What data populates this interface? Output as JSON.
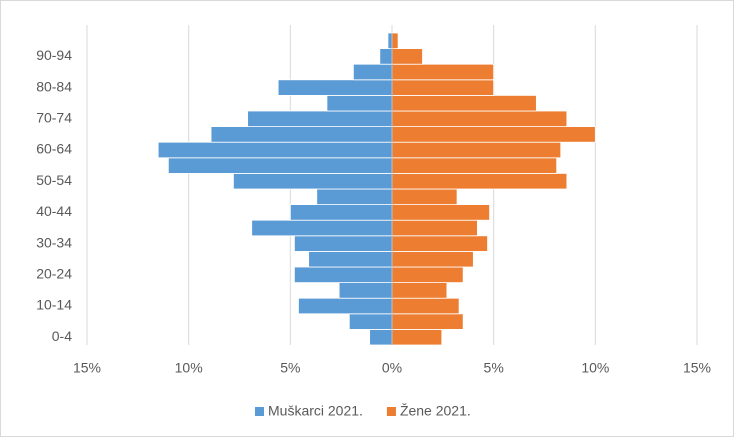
{
  "chart_data": {
    "type": "bar",
    "orientation": "horizontal",
    "stacked": "diverging",
    "categories": [
      "0-4",
      null,
      "10-14",
      null,
      "20-24",
      null,
      "30-34",
      null,
      "40-44",
      null,
      "50-54",
      null,
      "60-64",
      null,
      "70-74",
      null,
      "80-84",
      null,
      "90-94",
      null
    ],
    "series": [
      {
        "name": "Muškarci 2021.",
        "color": "#5b9bd5",
        "values": [
          -1.1,
          -2.1,
          -4.6,
          -2.6,
          -4.8,
          -4.1,
          -4.8,
          -6.9,
          -5.0,
          -3.7,
          -7.8,
          -11.0,
          -11.5,
          -8.9,
          -7.1,
          -3.2,
          -5.6,
          -1.9,
          -0.6,
          -0.2
        ]
      },
      {
        "name": "Žene 2021.",
        "color": "#ed7d31",
        "values": [
          2.45,
          3.5,
          3.3,
          2.7,
          3.5,
          4.0,
          4.7,
          4.2,
          4.8,
          3.2,
          8.6,
          8.1,
          8.3,
          10.0,
          8.6,
          7.1,
          5.0,
          5.0,
          1.5,
          0.3
        ]
      }
    ],
    "xlim": [
      -15,
      15
    ],
    "xticks": [
      {
        "value": -15,
        "label": "15%"
      },
      {
        "value": -10,
        "label": "10%"
      },
      {
        "value": -5,
        "label": "5%"
      },
      {
        "value": 0,
        "label": "0%"
      },
      {
        "value": 5,
        "label": "5%"
      },
      {
        "value": 10,
        "label": "10%"
      },
      {
        "value": 15,
        "label": "15%"
      }
    ],
    "grid": true,
    "legend": "bottom"
  }
}
